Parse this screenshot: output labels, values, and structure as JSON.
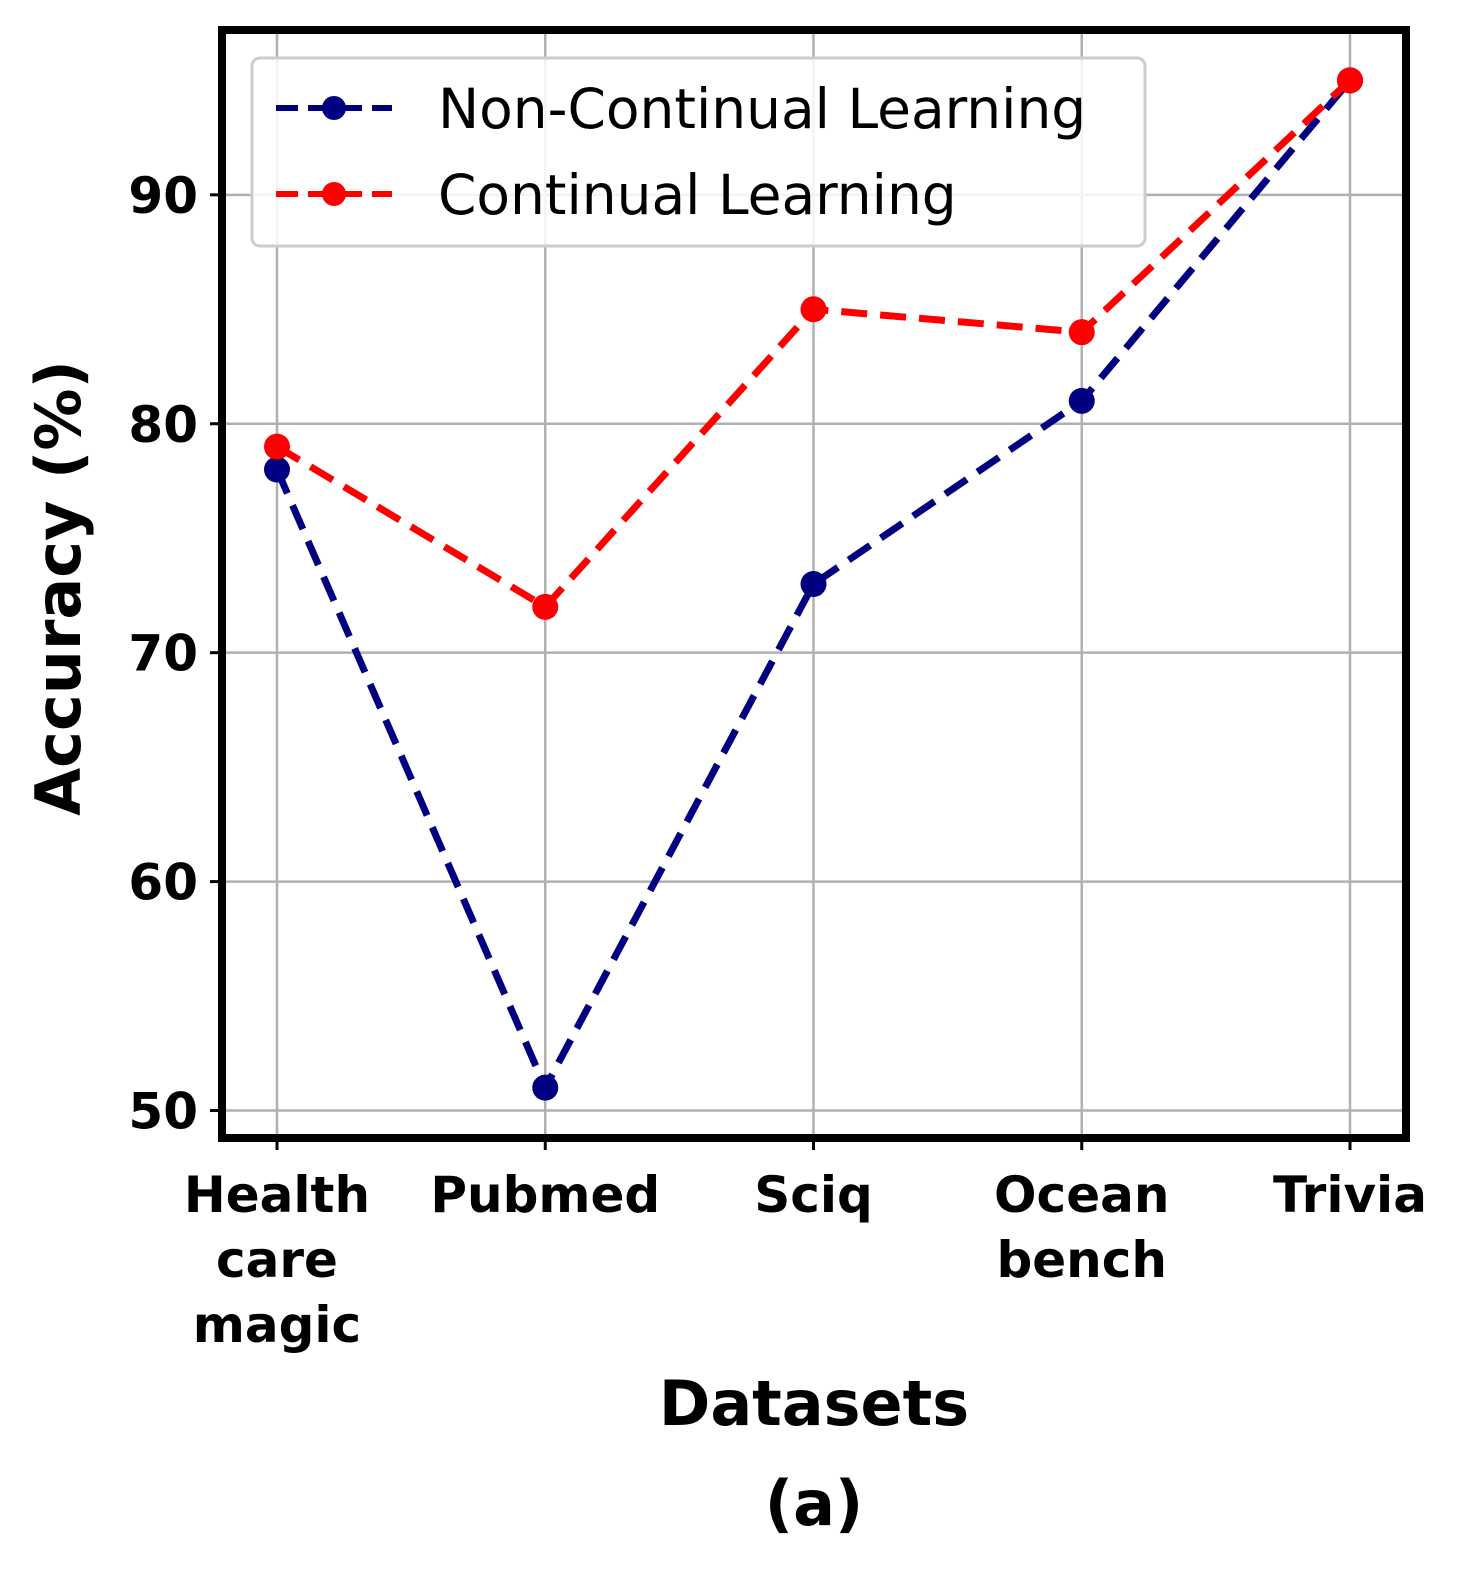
{
  "chart_data": {
    "type": "line",
    "categories": [
      [
        "Health",
        "care",
        "magic"
      ],
      [
        "Pubmed"
      ],
      [
        "Sciq"
      ],
      [
        "Ocean",
        "bench"
      ],
      [
        "Trivia"
      ]
    ],
    "series": [
      {
        "name": "Non-Continual Learning",
        "color": "#000080",
        "values": [
          78,
          51,
          73,
          81,
          95
        ]
      },
      {
        "name": "Continual Learning",
        "color": "#ff0000",
        "values": [
          79,
          72,
          85,
          84,
          95
        ]
      }
    ],
    "xlabel": "Datasets",
    "ylabel": "Accuracy (%)",
    "yticks": [
      50,
      60,
      70,
      80,
      90
    ],
    "ylim": [
      48.8,
      97.2
    ],
    "grid": true,
    "legend": "top-left",
    "line_style": "dashed",
    "marker": "circle"
  },
  "caption": "(a)"
}
